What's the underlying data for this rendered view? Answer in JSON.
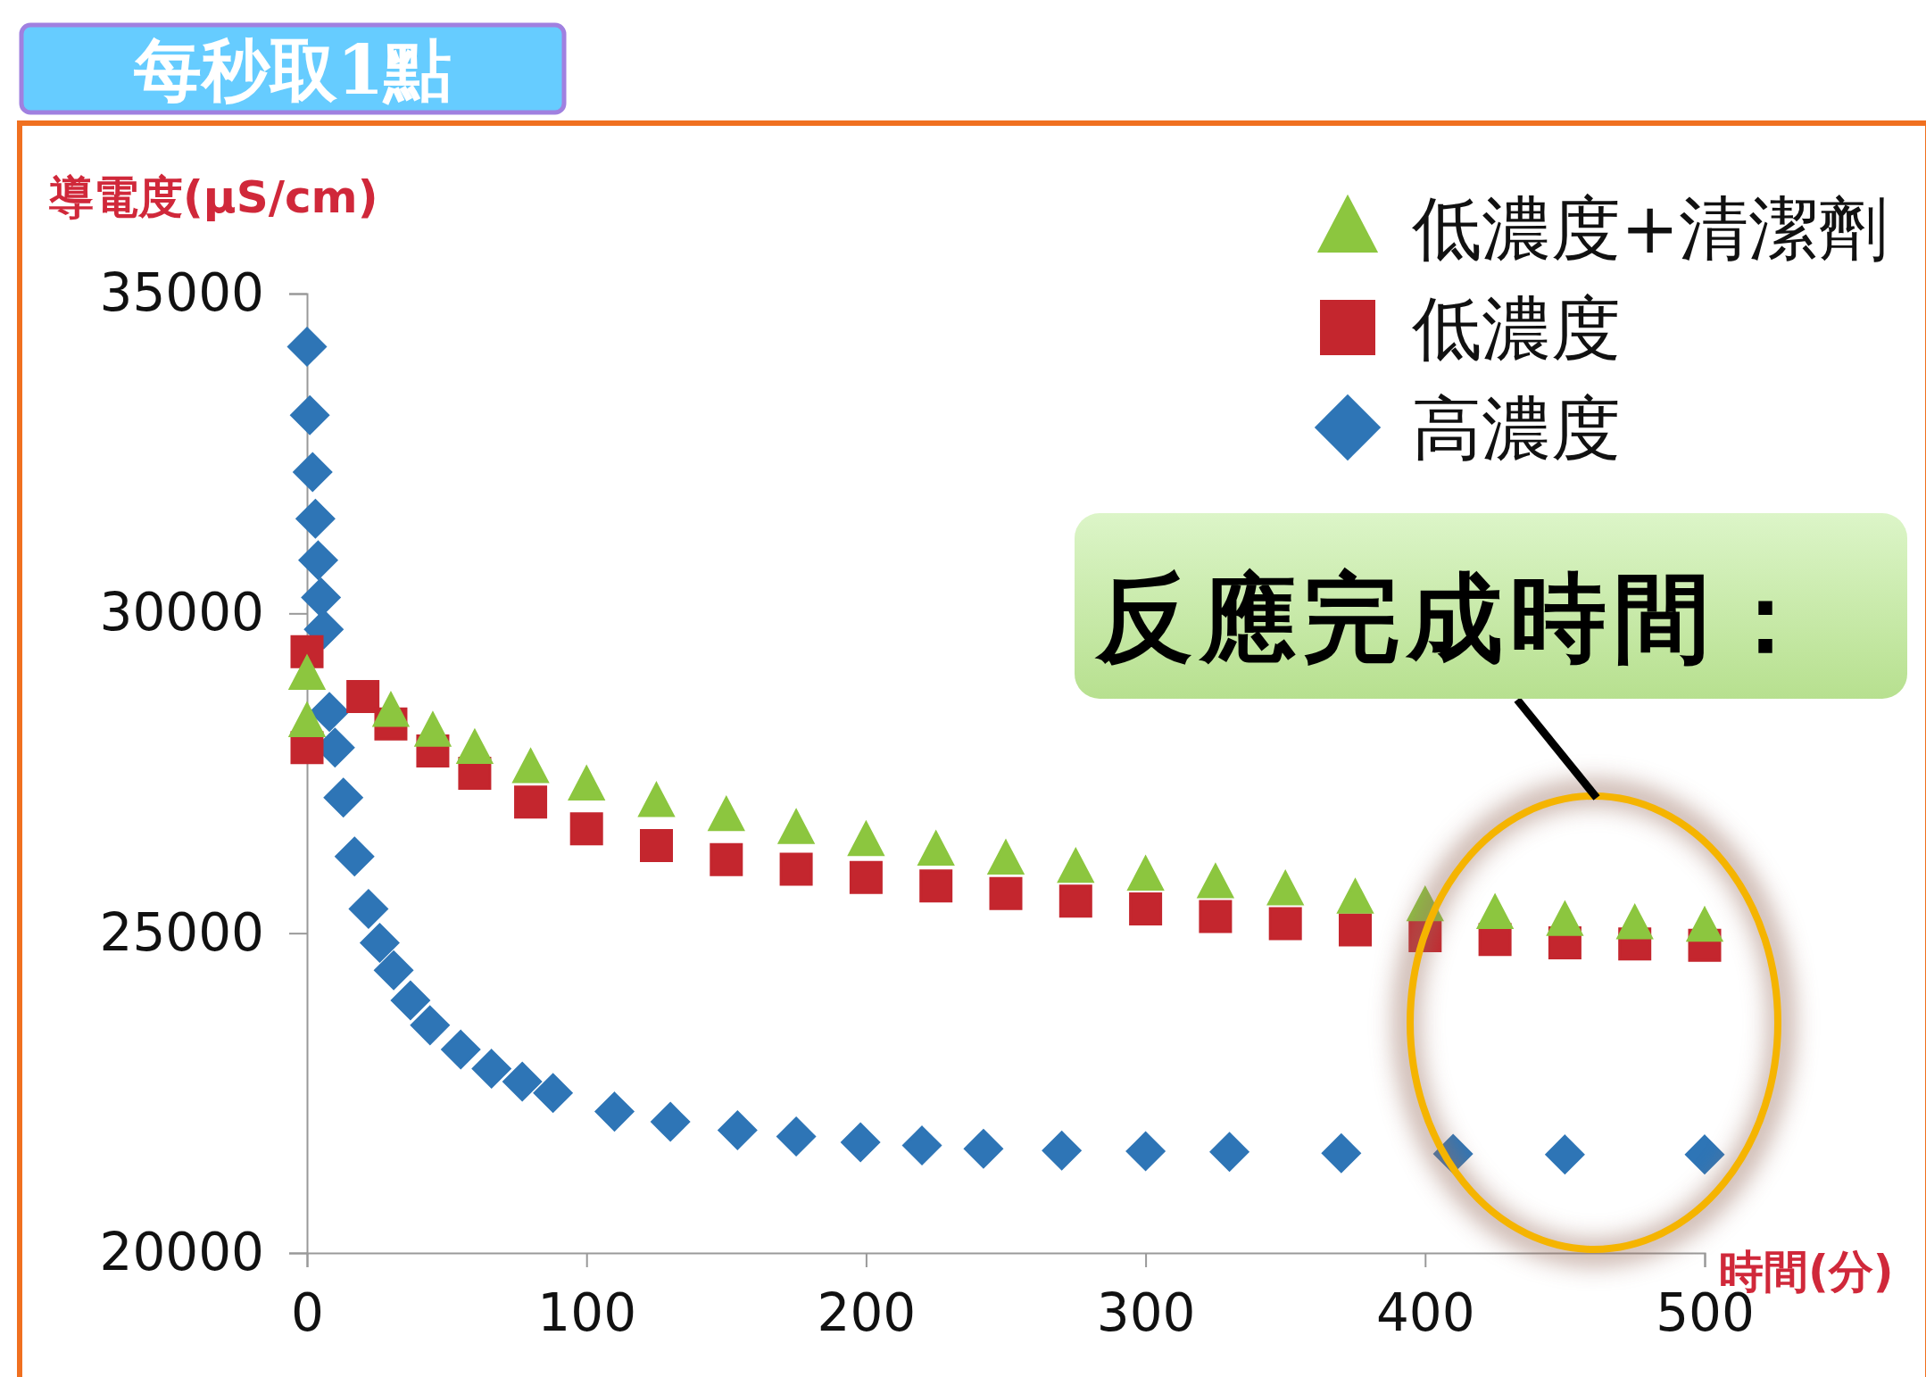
{
  "chart_data": {
    "type": "scatter",
    "title": "每秒取1點",
    "xlabel": "時間(分)",
    "ylabel": "導電度(μS/cm)",
    "legend": "top right",
    "xlim": [
      0,
      500
    ],
    "xticks": [
      0,
      100,
      200,
      300,
      400,
      500
    ],
    "ylim": [
      20000,
      35000
    ],
    "yticks": [
      20000,
      25000,
      30000,
      35000
    ],
    "annotations": [
      "反應完成時間："
    ],
    "series": [
      {
        "name": "低濃度+清潔劑",
        "color": "#8cc63f",
        "marker": "triangle",
        "x": [
          0,
          0,
          30,
          45,
          60,
          80,
          100,
          125,
          150,
          175,
          200,
          225,
          250,
          275,
          300,
          325,
          350,
          375,
          400,
          425,
          450,
          475,
          500
        ],
        "values": [
          28300,
          29040,
          28460,
          28150,
          27880,
          27580,
          27310,
          27050,
          26830,
          26630,
          26440,
          26290,
          26150,
          26020,
          25900,
          25780,
          25670,
          25540,
          25420,
          25300,
          25190,
          25140,
          25100
        ]
      },
      {
        "name": "低濃度",
        "color": "#c4262e",
        "marker": "square",
        "x": [
          0,
          0,
          20,
          30,
          45,
          60,
          80,
          100,
          125,
          150,
          175,
          200,
          225,
          250,
          275,
          300,
          325,
          350,
          375,
          400,
          425,
          450,
          475,
          500
        ],
        "values": [
          27900,
          29400,
          28700,
          28270,
          27850,
          27500,
          27050,
          26630,
          26370,
          26150,
          26000,
          25870,
          25740,
          25620,
          25500,
          25380,
          25260,
          25150,
          25050,
          24960,
          24900,
          24850,
          24830,
          24810
        ]
      },
      {
        "name": "高濃度",
        "color": "#2e75b6",
        "marker": "diamond",
        "x": [
          0,
          1,
          2,
          3,
          4,
          5,
          6,
          8,
          10,
          13,
          17,
          22,
          26,
          31,
          37,
          44,
          55,
          66,
          77,
          88,
          110,
          130,
          154,
          175,
          198,
          220,
          242,
          270,
          300,
          330,
          370,
          410,
          450,
          500
        ],
        "values": [
          34170,
          33100,
          32210,
          31480,
          30830,
          30250,
          29750,
          28460,
          27900,
          27120,
          26200,
          25380,
          24850,
          24420,
          23950,
          23560,
          23180,
          22880,
          22680,
          22500,
          22210,
          22050,
          21920,
          21820,
          21730,
          21680,
          21630,
          21600,
          21590,
          21580,
          21560,
          21550,
          21540,
          21540
        ]
      }
    ]
  }
}
